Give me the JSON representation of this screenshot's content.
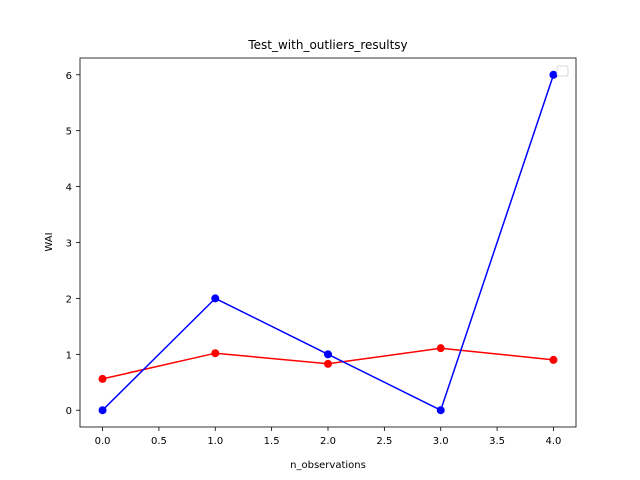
{
  "chart_data": {
    "type": "line",
    "title": "Test_with_outliers_resultsy",
    "xlabel": "n_observations",
    "ylabel": "WAI",
    "xlim": [
      -0.2,
      4.2
    ],
    "ylim": [
      -0.3,
      6.3
    ],
    "x_ticks": [
      0.0,
      0.5,
      1.0,
      1.5,
      2.0,
      2.5,
      3.0,
      3.5,
      4.0
    ],
    "x_tick_labels": [
      "0.0",
      "0.5",
      "1.0",
      "1.5",
      "2.0",
      "2.5",
      "3.0",
      "3.5",
      "4.0"
    ],
    "y_ticks": [
      0,
      1,
      2,
      3,
      4,
      5,
      6
    ],
    "y_tick_labels": [
      "0",
      "1",
      "2",
      "3",
      "4",
      "5",
      "6"
    ],
    "grid": false,
    "legend": {
      "position": "top-right",
      "entries": []
    },
    "series": [
      {
        "color": "#ff0000",
        "marker": "circle",
        "x": [
          0,
          1,
          2,
          3,
          4
        ],
        "y": [
          0.56,
          1.02,
          0.83,
          1.11,
          0.9
        ]
      },
      {
        "color": "#0000ff",
        "marker": "circle",
        "x": [
          0,
          1,
          2,
          3,
          4
        ],
        "y": [
          0,
          2,
          1,
          0,
          6
        ]
      }
    ]
  }
}
